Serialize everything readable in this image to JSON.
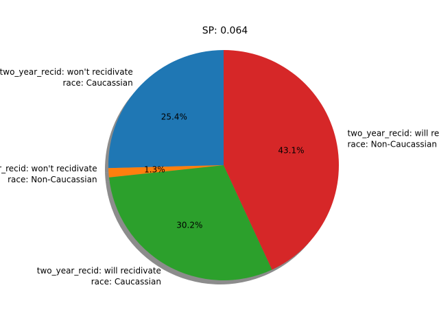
{
  "chart_data": {
    "type": "pie",
    "title": "SP: 0.064",
    "shadow": true,
    "start_angle_deg": 90,
    "direction": "counterclockwise",
    "slices": [
      {
        "label_line1": "two_year_recid: won't recidivate",
        "label_line2": "race: Caucassian",
        "value": 25.4,
        "pct_label": "25.4%",
        "color": "#1f77b4"
      },
      {
        "label_line1": "two_year_recid: won't recidivate",
        "label_line2": "race: Non-Caucassian",
        "value": 1.3,
        "pct_label": "1.3%",
        "color": "#ff7f0e"
      },
      {
        "label_line1": "two_year_recid: will recidivate",
        "label_line2": "race: Caucassian",
        "value": 30.2,
        "pct_label": "30.2%",
        "color": "#2ca02c"
      },
      {
        "label_line1": "two_year_recid: will recidivate",
        "label_line2": "race: Non-Caucassian",
        "value": 43.1,
        "pct_label": "43.1%",
        "color": "#d62728"
      }
    ]
  }
}
